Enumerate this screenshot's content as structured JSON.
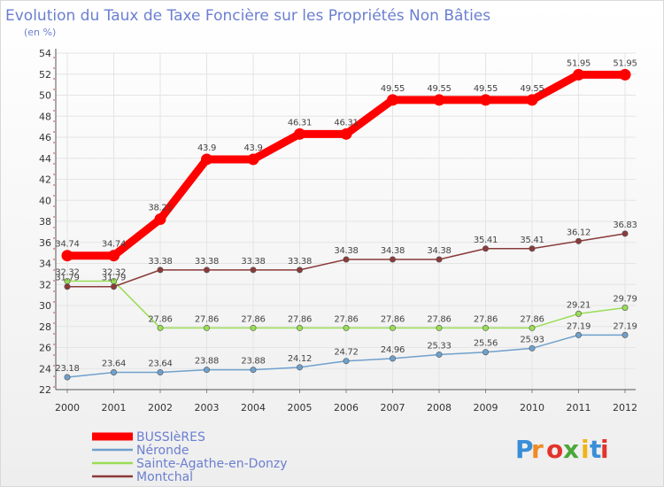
{
  "chart_data": {
    "type": "line",
    "title": "Evolution du Taux de Taxe Foncière sur les Propriétés Non Bâties",
    "subtitle": "(en %)",
    "x": [
      "2000",
      "2001",
      "2002",
      "2003",
      "2004",
      "2005",
      "2006",
      "2007",
      "2008",
      "2009",
      "2010",
      "2011",
      "2012"
    ],
    "ylim": [
      22,
      54
    ],
    "yticks": [
      22,
      24,
      26,
      28,
      30,
      32,
      34,
      36,
      38,
      40,
      42,
      44,
      46,
      48,
      50,
      52,
      54
    ],
    "grid": true,
    "legend_position": "bottom-left",
    "series": [
      {
        "name": "BUSSIèRES",
        "color": "#ff0000",
        "values": [
          34.74,
          34.74,
          38.21,
          43.9,
          43.9,
          46.31,
          46.31,
          49.55,
          49.55,
          49.55,
          49.55,
          51.95,
          51.95
        ],
        "labels": [
          "34.74",
          "34.74",
          "38.21",
          "43.9",
          "43.9",
          "46.31",
          "46.31",
          "49.55",
          "49.55",
          "49.55",
          "49.55",
          "51.95",
          "51.95"
        ]
      },
      {
        "name": "Néronde",
        "color": "#6fa0cc",
        "values": [
          23.18,
          23.64,
          23.64,
          23.88,
          23.88,
          24.12,
          24.72,
          24.96,
          25.33,
          25.56,
          25.93,
          27.19,
          27.19
        ],
        "labels": [
          "23.18",
          "23.64",
          "23.64",
          "23.88",
          "23.88",
          "24.12",
          "24.72",
          "24.96",
          "25.33",
          "25.56",
          "25.93",
          "27.19",
          "27.19"
        ]
      },
      {
        "name": "Sainte-Agathe-en-Donzy",
        "color": "#99dd55",
        "values": [
          32.32,
          32.32,
          27.86,
          27.86,
          27.86,
          27.86,
          27.86,
          27.86,
          27.86,
          27.86,
          27.86,
          29.21,
          29.79
        ],
        "labels": [
          "32.32",
          "32.32",
          "27.86",
          "27.86",
          "27.86",
          "27.86",
          "27.86",
          "27.86",
          "27.86",
          "27.86",
          "27.86",
          "29.21",
          "29.79"
        ]
      },
      {
        "name": "Montchal",
        "color": "#8b3a3a",
        "values": [
          31.79,
          31.79,
          33.38,
          33.38,
          33.38,
          33.38,
          34.38,
          34.38,
          34.38,
          35.41,
          35.41,
          36.12,
          36.83
        ],
        "labels": [
          "31.79",
          "31.79",
          "33.38",
          "33.38",
          "33.38",
          "33.38",
          "34.38",
          "34.38",
          "34.38",
          "35.41",
          "35.41",
          "36.12",
          "36.83"
        ]
      }
    ]
  },
  "logo": {
    "letters": [
      "P",
      "r",
      "o",
      "x",
      "i",
      "t",
      "i"
    ],
    "colors": [
      "#3a8ed8",
      "#f08a24",
      "#e2342c",
      "#4aa83a",
      "#f0b418",
      "#3a8ed8",
      "#e2342c"
    ]
  }
}
